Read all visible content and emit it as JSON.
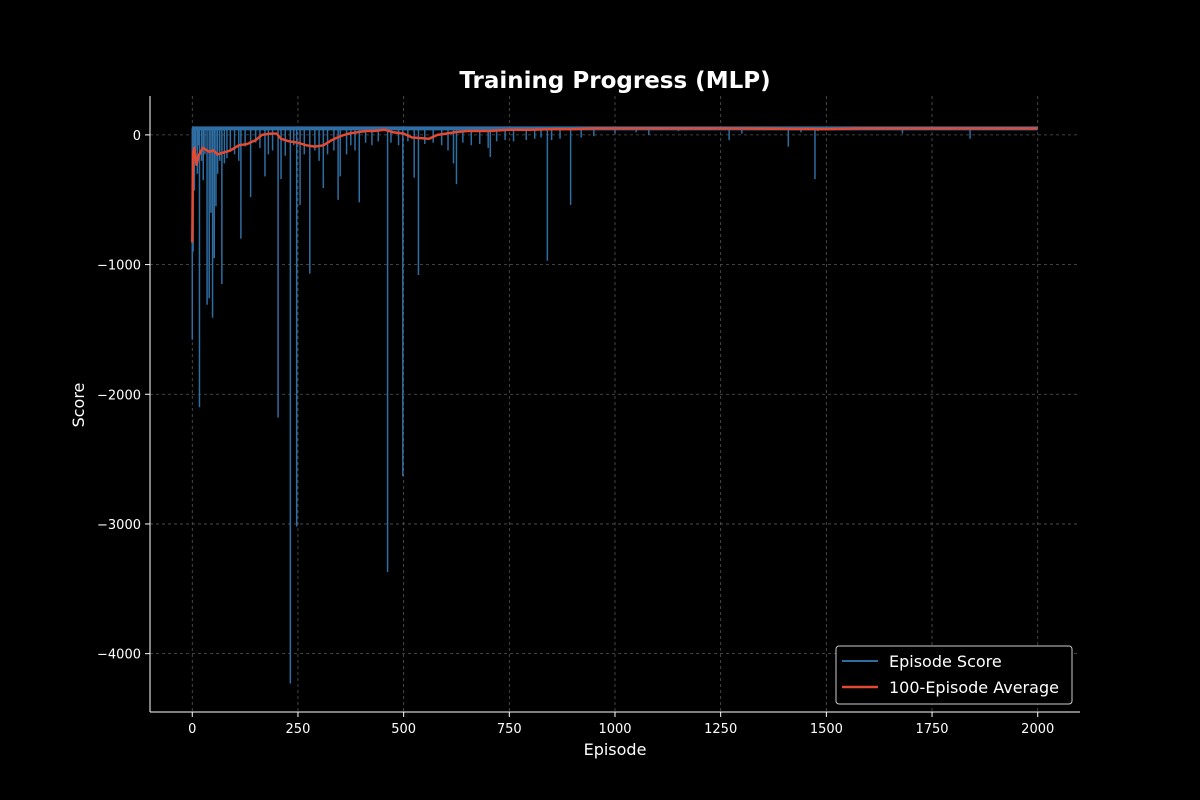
{
  "chart_data": {
    "type": "line",
    "title": "Training Progress (MLP)",
    "xlabel": "Episode",
    "ylabel": "Score",
    "xlim": [
      -100,
      2100
    ],
    "ylim": [
      -4450,
      300
    ],
    "xticks": [
      0,
      250,
      500,
      750,
      1000,
      1250,
      1500,
      1750,
      2000
    ],
    "xtick_labels": [
      "0",
      "250",
      "500",
      "750",
      "1000",
      "1250",
      "1500",
      "1750",
      "2000"
    ],
    "yticks": [
      -4000,
      -3000,
      -2000,
      -1000,
      0
    ],
    "ytick_labels": [
      "−4000",
      "−3000",
      "−2000",
      "−1000",
      "0"
    ],
    "grid": true,
    "legend_position": "bottom-right",
    "background": "#000000",
    "series": [
      {
        "name": "Episode Score",
        "color": "#2e6ea3",
        "line_width": 1.5,
        "baseline": 50,
        "note_baseline": "scores cluster around ~50 once converged",
        "spikes": [
          [
            0,
            -1580
          ],
          [
            2,
            -900
          ],
          [
            5,
            -430
          ],
          [
            8,
            -120
          ],
          [
            12,
            -300
          ],
          [
            15,
            -80
          ],
          [
            17,
            -2100
          ],
          [
            22,
            -200
          ],
          [
            26,
            -350
          ],
          [
            30,
            -150
          ],
          [
            35,
            -1310
          ],
          [
            40,
            -1260
          ],
          [
            44,
            -600
          ],
          [
            48,
            -1410
          ],
          [
            52,
            -950
          ],
          [
            56,
            -550
          ],
          [
            60,
            -300
          ],
          [
            65,
            -200
          ],
          [
            70,
            -1150
          ],
          [
            76,
            -220
          ],
          [
            82,
            -180
          ],
          [
            90,
            -120
          ],
          [
            100,
            -150
          ],
          [
            110,
            -200
          ],
          [
            115,
            -800
          ],
          [
            125,
            -90
          ],
          [
            138,
            -480
          ],
          [
            150,
            -60
          ],
          [
            160,
            -100
          ],
          [
            172,
            -320
          ],
          [
            180,
            -150
          ],
          [
            190,
            -120
          ],
          [
            203,
            -2180
          ],
          [
            210,
            -340
          ],
          [
            220,
            -160
          ],
          [
            232,
            -4230
          ],
          [
            240,
            -80
          ],
          [
            247,
            -3020
          ],
          [
            255,
            -540
          ],
          [
            265,
            -150
          ],
          [
            278,
            -1070
          ],
          [
            290,
            -120
          ],
          [
            300,
            -200
          ],
          [
            310,
            -410
          ],
          [
            320,
            -150
          ],
          [
            335,
            -120
          ],
          [
            345,
            -500
          ],
          [
            350,
            -320
          ],
          [
            365,
            -150
          ],
          [
            375,
            -80
          ],
          [
            385,
            -120
          ],
          [
            395,
            -520
          ],
          [
            410,
            -60
          ],
          [
            425,
            -80
          ],
          [
            440,
            -50
          ],
          [
            462,
            -3370
          ],
          [
            470,
            -60
          ],
          [
            488,
            -80
          ],
          [
            498,
            -2630
          ],
          [
            510,
            -50
          ],
          [
            525,
            -330
          ],
          [
            535,
            -1080
          ],
          [
            550,
            -70
          ],
          [
            570,
            -60
          ],
          [
            590,
            -80
          ],
          [
            605,
            -120
          ],
          [
            618,
            -220
          ],
          [
            625,
            -380
          ],
          [
            640,
            -60
          ],
          [
            660,
            -80
          ],
          [
            680,
            -70
          ],
          [
            700,
            -100
          ],
          [
            705,
            -170
          ],
          [
            720,
            -50
          ],
          [
            740,
            -40
          ],
          [
            760,
            -50
          ],
          [
            790,
            -40
          ],
          [
            810,
            -30
          ],
          [
            825,
            -20
          ],
          [
            840,
            -970
          ],
          [
            850,
            -40
          ],
          [
            870,
            -30
          ],
          [
            895,
            -540
          ],
          [
            920,
            -20
          ],
          [
            950,
            -10
          ],
          [
            1000,
            10
          ],
          [
            1050,
            20
          ],
          [
            1080,
            0
          ],
          [
            1150,
            30
          ],
          [
            1270,
            -40
          ],
          [
            1300,
            10
          ],
          [
            1410,
            -90
          ],
          [
            1440,
            20
          ],
          [
            1473,
            -340
          ],
          [
            1480,
            30
          ],
          [
            1520,
            40
          ],
          [
            1600,
            40
          ],
          [
            1680,
            10
          ],
          [
            1740,
            40
          ],
          [
            1840,
            -30
          ],
          [
            1900,
            40
          ],
          [
            2000,
            50
          ]
        ]
      },
      {
        "name": "100-Episode Average",
        "color": "#e34a33",
        "line_width": 2.5,
        "points": [
          [
            0,
            -830
          ],
          [
            1,
            -400
          ],
          [
            2,
            -140
          ],
          [
            5,
            -100
          ],
          [
            10,
            -230
          ],
          [
            15,
            -160
          ],
          [
            20,
            -130
          ],
          [
            25,
            -100
          ],
          [
            30,
            -110
          ],
          [
            40,
            -130
          ],
          [
            50,
            -120
          ],
          [
            60,
            -150
          ],
          [
            70,
            -140
          ],
          [
            80,
            -130
          ],
          [
            90,
            -120
          ],
          [
            100,
            -100
          ],
          [
            110,
            -80
          ],
          [
            130,
            -70
          ],
          [
            150,
            -40
          ],
          [
            165,
            0
          ],
          [
            185,
            10
          ],
          [
            200,
            10
          ],
          [
            210,
            -30
          ],
          [
            230,
            -50
          ],
          [
            250,
            -60
          ],
          [
            270,
            -80
          ],
          [
            290,
            -90
          ],
          [
            310,
            -80
          ],
          [
            330,
            -40
          ],
          [
            350,
            -10
          ],
          [
            370,
            10
          ],
          [
            390,
            20
          ],
          [
            410,
            30
          ],
          [
            430,
            30
          ],
          [
            455,
            40
          ],
          [
            475,
            20
          ],
          [
            500,
            10
          ],
          [
            520,
            -20
          ],
          [
            560,
            -30
          ],
          [
            580,
            0
          ],
          [
            600,
            10
          ],
          [
            620,
            20
          ],
          [
            650,
            30
          ],
          [
            700,
            30
          ],
          [
            750,
            40
          ],
          [
            800,
            40
          ],
          [
            850,
            45
          ],
          [
            900,
            45
          ],
          [
            950,
            50
          ],
          [
            1000,
            50
          ],
          [
            1250,
            50
          ],
          [
            1500,
            45
          ],
          [
            1580,
            50
          ],
          [
            1750,
            50
          ],
          [
            2000,
            50
          ]
        ]
      }
    ]
  }
}
